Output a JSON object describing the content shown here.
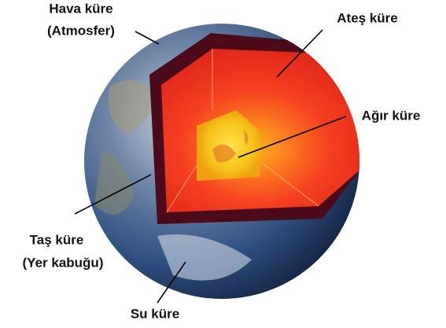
{
  "labels": [
    {
      "label": "Hava küre",
      "sublabel": "(Atmosfer)"
    },
    {
      "label": "Ateş küre"
    },
    {
      "label": "Ağır küre"
    },
    {
      "label": "Taş küre",
      "sublabel": "(Yer kabuğu)"
    },
    {
      "label": "Su küre"
    }
  ]
}
